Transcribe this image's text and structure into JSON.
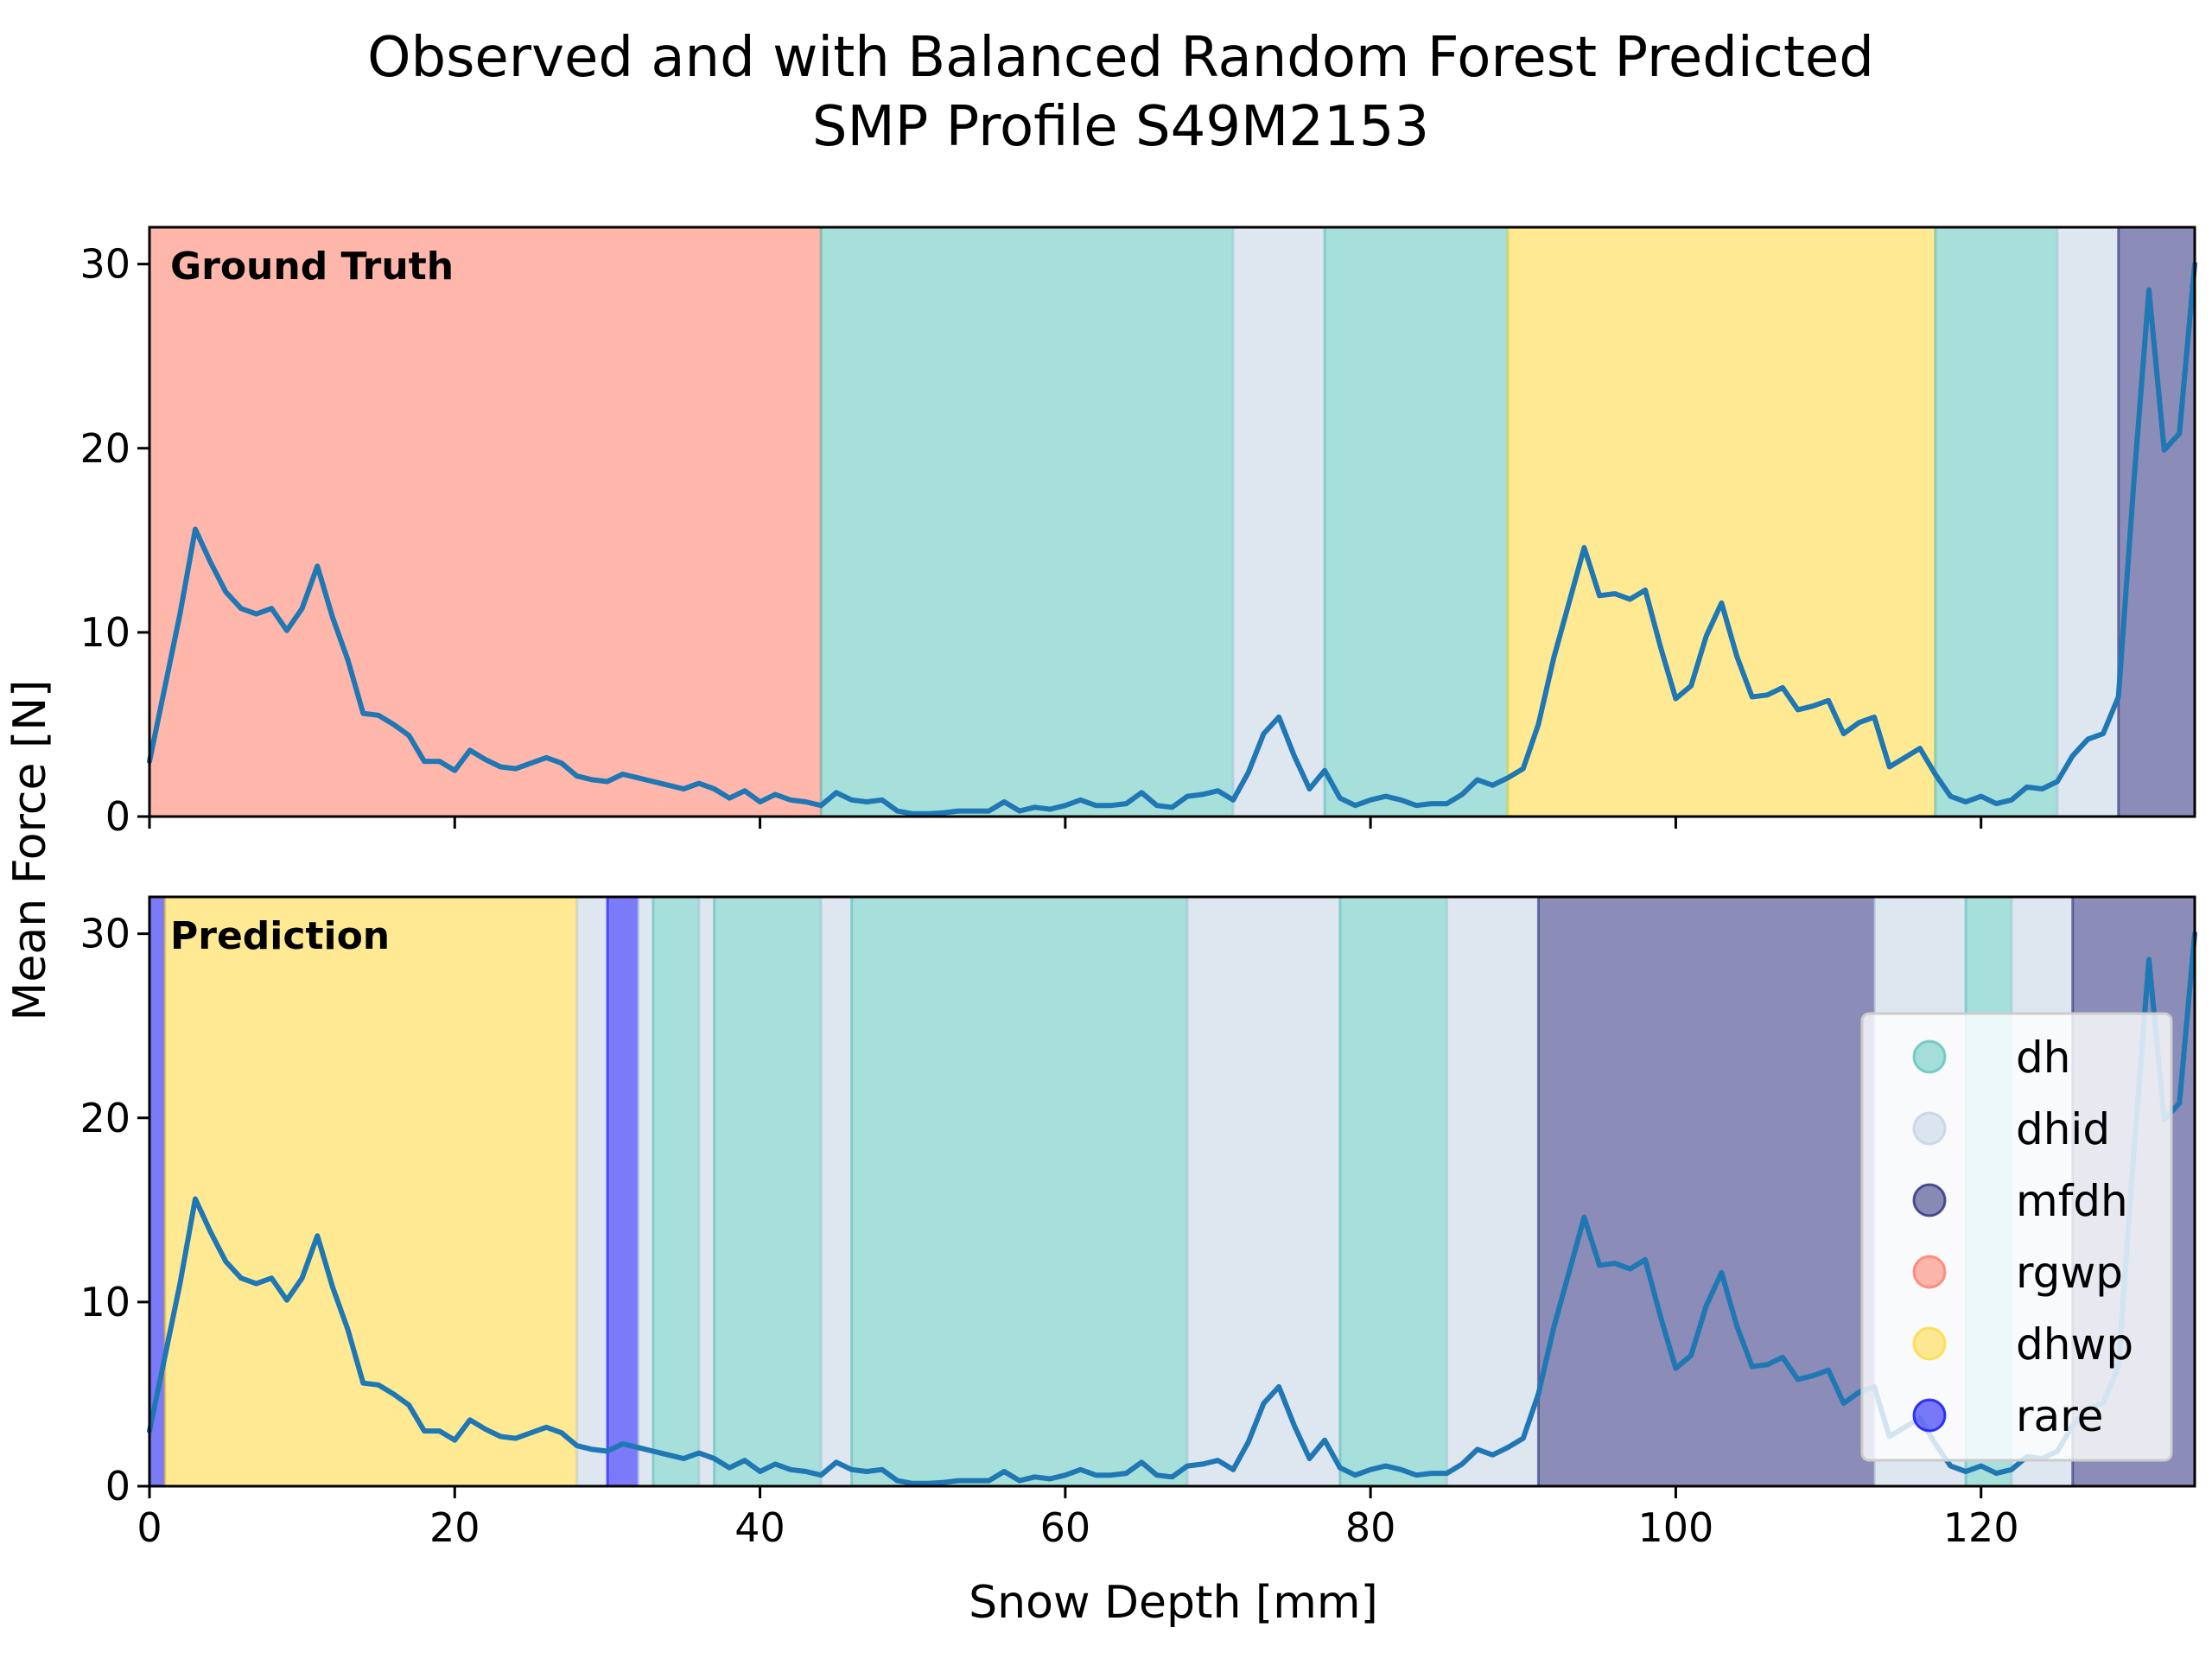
{
  "title_line1": "Observed and with Balanced Random Forest Predicted",
  "title_line2": "SMP Profile S49M2153",
  "chart_data": {
    "type": "line",
    "xlabel": "Snow Depth [mm]",
    "ylabel": "Mean Force [N]",
    "xlim": [
      0,
      134
    ],
    "ylim": [
      0,
      32
    ],
    "xticks": [
      0,
      20,
      40,
      60,
      80,
      100,
      120
    ],
    "yticks": [
      0,
      10,
      20,
      30
    ],
    "grid": false,
    "legend_position": "lower-right",
    "classes": [
      {
        "name": "dh",
        "color": "#5fc4bb"
      },
      {
        "name": "dhid",
        "color": "#c3d2e4"
      },
      {
        "name": "mfdh",
        "color": "#2c2e7c"
      },
      {
        "name": "rgwp",
        "color": "#ff7c66"
      },
      {
        "name": "dhwp",
        "color": "#ffd93b"
      },
      {
        "name": "rare",
        "color": "#0f0ff5"
      }
    ],
    "line_color": "#1f77b4",
    "series": [
      {
        "x": [
          0,
          1,
          2,
          3,
          4,
          5,
          6,
          7,
          8,
          9,
          10,
          11,
          12,
          13,
          14,
          15,
          16,
          17,
          18,
          19,
          20,
          21,
          22,
          23,
          24,
          25,
          26,
          27,
          28,
          29,
          30,
          31,
          32,
          33,
          34,
          35,
          36,
          37,
          38,
          39,
          40,
          41,
          42,
          43,
          44,
          45,
          46,
          47,
          48,
          49,
          50,
          51,
          52,
          53,
          54,
          55,
          56,
          57,
          58,
          59,
          60,
          61,
          62,
          63,
          64,
          65,
          66,
          67,
          68,
          69,
          70,
          71,
          72,
          73,
          74,
          75,
          76,
          77,
          78,
          79,
          80,
          81,
          82,
          83,
          84,
          85,
          86,
          87,
          88,
          89,
          90,
          91,
          92,
          93,
          94,
          95,
          96,
          97,
          98,
          99,
          100,
          101,
          102,
          103,
          104,
          105,
          106,
          107,
          108,
          109,
          110,
          111,
          112,
          113,
          114,
          115,
          116,
          117,
          118,
          119,
          120,
          121,
          122,
          123,
          124,
          125,
          126,
          127,
          128,
          129,
          130,
          131,
          132,
          133,
          134
        ],
        "values": [
          3,
          7,
          11,
          15.6,
          13.8,
          12.2,
          11.3,
          11.0,
          11.3,
          10.1,
          11.3,
          13.6,
          10.8,
          8.5,
          5.6,
          5.5,
          5.0,
          4.4,
          3.0,
          3.0,
          2.5,
          3.6,
          3.1,
          2.7,
          2.6,
          2.9,
          3.2,
          2.9,
          2.2,
          2.0,
          1.9,
          2.3,
          2.1,
          1.9,
          1.7,
          1.5,
          1.8,
          1.5,
          1.0,
          1.4,
          0.8,
          1.2,
          0.9,
          0.8,
          0.6,
          1.3,
          0.9,
          0.8,
          0.9,
          0.3,
          0.15,
          0.15,
          0.2,
          0.3,
          0.3,
          0.3,
          0.8,
          0.3,
          0.5,
          0.4,
          0.6,
          0.9,
          0.6,
          0.6,
          0.7,
          1.3,
          0.6,
          0.5,
          1.1,
          1.2,
          1.4,
          0.9,
          2.4,
          4.5,
          5.4,
          3.3,
          1.5,
          2.5,
          1.0,
          0.6,
          0.9,
          1.1,
          0.9,
          0.6,
          0.7,
          0.7,
          1.2,
          2.0,
          1.7,
          2.1,
          2.6,
          5.0,
          8.6,
          11.6,
          14.6,
          12.0,
          12.1,
          11.8,
          12.3,
          9.2,
          6.4,
          7.1,
          9.8,
          11.6,
          8.7,
          6.5,
          6.6,
          7.0,
          5.8,
          6.0,
          6.3,
          4.5,
          5.1,
          5.4,
          2.7,
          3.2,
          3.7,
          2.3,
          1.1,
          0.8,
          1.1,
          0.7,
          0.9,
          1.6,
          1.5,
          1.9,
          3.3,
          4.2,
          4.5,
          6.5,
          18.0,
          28.6,
          19.9,
          20.8,
          30.0
        ]
      }
    ],
    "panels": [
      {
        "label": "Ground Truth",
        "segments": [
          {
            "start": 0,
            "end": 44,
            "cls": "rgwp"
          },
          {
            "start": 44,
            "end": 71,
            "cls": "dh"
          },
          {
            "start": 71,
            "end": 77,
            "cls": "dhid"
          },
          {
            "start": 77,
            "end": 89,
            "cls": "dh"
          },
          {
            "start": 89,
            "end": 117,
            "cls": "dhwp"
          },
          {
            "start": 117,
            "end": 125,
            "cls": "dh"
          },
          {
            "start": 125,
            "end": 129,
            "cls": "dhid"
          },
          {
            "start": 129,
            "end": 134,
            "cls": "mfdh"
          }
        ]
      },
      {
        "label": "Prediction",
        "segments": [
          {
            "start": 0,
            "end": 1,
            "cls": "rare"
          },
          {
            "start": 1,
            "end": 28,
            "cls": "dhwp"
          },
          {
            "start": 28,
            "end": 30,
            "cls": "dhid"
          },
          {
            "start": 30,
            "end": 32,
            "cls": "rare"
          },
          {
            "start": 32,
            "end": 33,
            "cls": "dhid"
          },
          {
            "start": 33,
            "end": 36,
            "cls": "dh"
          },
          {
            "start": 36,
            "end": 37,
            "cls": "dhid"
          },
          {
            "start": 37,
            "end": 44,
            "cls": "dh"
          },
          {
            "start": 44,
            "end": 46,
            "cls": "dhid"
          },
          {
            "start": 46,
            "end": 68,
            "cls": "dh"
          },
          {
            "start": 68,
            "end": 78,
            "cls": "dhid"
          },
          {
            "start": 78,
            "end": 85,
            "cls": "dh"
          },
          {
            "start": 85,
            "end": 91,
            "cls": "dhid"
          },
          {
            "start": 91,
            "end": 113,
            "cls": "mfdh"
          },
          {
            "start": 113,
            "end": 119,
            "cls": "dhid"
          },
          {
            "start": 119,
            "end": 122,
            "cls": "dh"
          },
          {
            "start": 122,
            "end": 126,
            "cls": "dhid"
          },
          {
            "start": 126,
            "end": 134,
            "cls": "mfdh"
          }
        ]
      }
    ]
  }
}
